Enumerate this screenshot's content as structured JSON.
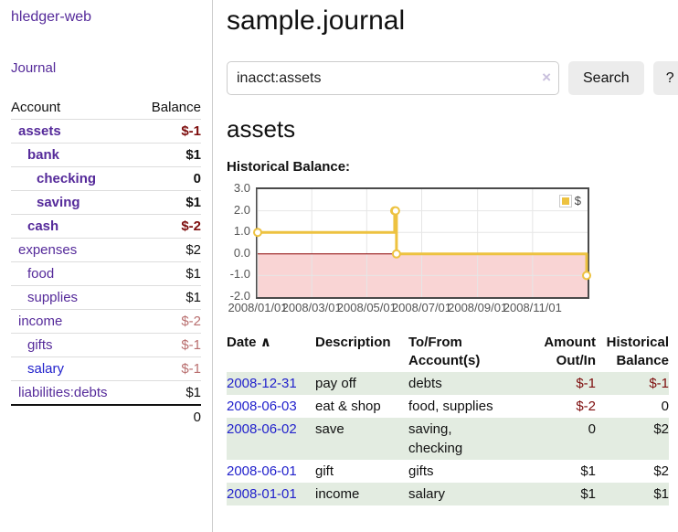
{
  "app": {
    "title": "hledger-web"
  },
  "sidebar": {
    "journal_link": "Journal",
    "accounts_table": {
      "headers": {
        "account": "Account",
        "balance": "Balance"
      },
      "rows": [
        {
          "name": "assets",
          "balance": "$-1",
          "indent": 1,
          "bold": true,
          "balance_class": "neg-strong",
          "link_style": "purple"
        },
        {
          "name": "bank",
          "balance": "$1",
          "indent": 2,
          "bold": true,
          "balance_class": "",
          "link_style": "purple"
        },
        {
          "name": "checking",
          "balance": "0",
          "indent": 3,
          "bold": true,
          "balance_class": "",
          "link_style": "purple"
        },
        {
          "name": "saving",
          "balance": "$1",
          "indent": 3,
          "bold": true,
          "balance_class": "",
          "link_style": "purple"
        },
        {
          "name": "cash",
          "balance": "$-2",
          "indent": 2,
          "bold": true,
          "balance_class": "neg-strong",
          "link_style": "purple"
        },
        {
          "name": "expenses",
          "balance": "$2",
          "indent": 1,
          "bold": false,
          "balance_class": "",
          "link_style": "purple"
        },
        {
          "name": "food",
          "balance": "$1",
          "indent": 2,
          "bold": false,
          "balance_class": "",
          "link_style": "purple"
        },
        {
          "name": "supplies",
          "balance": "$1",
          "indent": 2,
          "bold": false,
          "balance_class": "",
          "link_style": "purple"
        },
        {
          "name": "income",
          "balance": "$-2",
          "indent": 1,
          "bold": false,
          "balance_class": "neg-soft",
          "link_style": "purple"
        },
        {
          "name": "gifts",
          "balance": "$-1",
          "indent": 2,
          "bold": false,
          "balance_class": "neg-soft",
          "link_style": "purple"
        },
        {
          "name": "salary",
          "balance": "$-1",
          "indent": 2,
          "bold": false,
          "balance_class": "neg-soft",
          "link_style": "blue"
        },
        {
          "name": "liabilities:debts",
          "balance": "$1",
          "indent": 1,
          "bold": false,
          "balance_class": "",
          "link_style": "purple"
        }
      ],
      "total": "0"
    }
  },
  "main": {
    "title": "sample.journal",
    "search": {
      "value": "inacct:assets",
      "clear_icon": "×",
      "button_label": "Search",
      "help_label": "?"
    },
    "account_heading": "assets",
    "register": {
      "headers": {
        "date": "Date",
        "description": "Description",
        "accounts": "To/From Account(s)",
        "amount": "Amount Out/In",
        "balance": "Historical Balance"
      },
      "sort_icon": "∧",
      "rows": [
        {
          "date": "2008-12-31",
          "description": "pay off",
          "accounts": "debts",
          "amount": "$-1",
          "amount_negative": true,
          "balance": "$-1",
          "balance_negative": true,
          "shaded": true
        },
        {
          "date": "2008-06-03",
          "description": "eat & shop",
          "accounts": "food, supplies",
          "amount": "$-2",
          "amount_negative": true,
          "balance": "0",
          "balance_negative": false,
          "shaded": false
        },
        {
          "date": "2008-06-02",
          "description": "save",
          "accounts": "saving, checking",
          "amount": "0",
          "amount_negative": false,
          "balance": "$2",
          "balance_negative": false,
          "shaded": true
        },
        {
          "date": "2008-06-01",
          "description": "gift",
          "accounts": "gifts",
          "amount": "$1",
          "amount_negative": false,
          "balance": "$2",
          "balance_negative": false,
          "shaded": false
        },
        {
          "date": "2008-01-01",
          "description": "income",
          "accounts": "salary",
          "amount": "$1",
          "amount_negative": false,
          "balance": "$1",
          "balance_negative": false,
          "shaded": true
        }
      ]
    }
  },
  "chart_data": {
    "type": "line",
    "step": true,
    "title": "Historical Balance:",
    "series": [
      {
        "name": "$",
        "color": "#EDC240",
        "points": [
          [
            "2008-01-01",
            1
          ],
          [
            "2008-06-01",
            2
          ],
          [
            "2008-06-02",
            2
          ],
          [
            "2008-06-03",
            0
          ],
          [
            "2008-12-31",
            -1
          ]
        ]
      }
    ],
    "x_range": [
      "2008-01-01",
      "2009-01-01"
    ],
    "x_tick_labels": [
      "2008/01/01",
      "2008/03/01",
      "2008/05/01",
      "2008/07/01",
      "2008/09/01",
      "2008/11/01"
    ],
    "y_ticks": [
      3.0,
      2.0,
      1.0,
      0.0,
      -1.0,
      -2.0
    ],
    "ylim": [
      -2,
      3
    ],
    "legend_position": "top-right",
    "grid": true
  },
  "colors": {
    "accent_purple": "#552a9a",
    "link_blue": "#2222cc",
    "negative_strong": "#7d0d0d",
    "negative_soft": "#b96f6f",
    "row_green": "#e3ece1",
    "series_gold": "#EDC240",
    "chart_negative_bg": "#f9d4d4",
    "zero_line": "#8b0000",
    "grid_line": "#e6e6e6",
    "plot_border": "#4a4a4a"
  }
}
